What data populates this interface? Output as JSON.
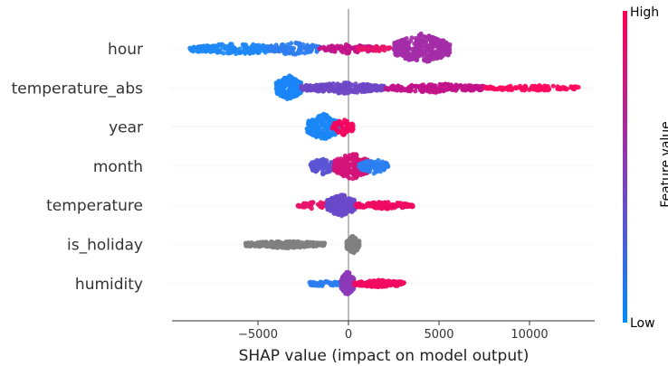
{
  "chart_data": {
    "type": "scatter",
    "subtype": "shap-beeswarm",
    "title": "",
    "xlabel": "SHAP value (impact on model output)",
    "ylabel": "",
    "xlim": [
      -9800,
      13800
    ],
    "xticks": [
      -5000,
      0,
      5000,
      10000
    ],
    "xtick_labels": [
      "−5000",
      "0",
      "5000",
      "10000"
    ],
    "grid": false,
    "colorbar": {
      "low_label": "Low",
      "high_label": "High",
      "title": "Feature value",
      "low_color": "#008bfb",
      "high_color": "#ff0052"
    },
    "features": [
      {
        "name": "hour",
        "clusters": [
          {
            "min": -8800,
            "max": -3500,
            "color": "#1e88f5",
            "spread": 6,
            "n": 180
          },
          {
            "min": -4500,
            "max": -1500,
            "color": "#2f7ef0",
            "spread": 7,
            "n": 90
          },
          {
            "min": -1600,
            "max": 1400,
            "color": "#c2138a",
            "spread": 5,
            "n": 90
          },
          {
            "min": 500,
            "max": 2500,
            "color": "#e8146a",
            "spread": 3,
            "n": 40
          },
          {
            "min": 2500,
            "max": 5600,
            "color": "#a42ca8",
            "spread": 17,
            "n": 320
          }
        ]
      },
      {
        "name": "temperature_abs",
        "clusters": [
          {
            "min": -4000,
            "max": -2600,
            "color": "#1a86f7",
            "spread": 14,
            "n": 200
          },
          {
            "min": -2600,
            "max": 2000,
            "color": "#6e46c6",
            "spread": 6,
            "n": 220
          },
          {
            "min": 2000,
            "max": 7500,
            "color": "#c2128a",
            "spread": 5,
            "n": 200
          },
          {
            "min": 7500,
            "max": 12700,
            "color": "#ff0a60",
            "spread": 3,
            "n": 120
          }
        ]
      },
      {
        "name": "year",
        "clusters": [
          {
            "min": -2300,
            "max": -500,
            "color": "#1b87f5",
            "spread": 15,
            "n": 180
          },
          {
            "min": -900,
            "max": 300,
            "color": "#f2065f",
            "spread": 9,
            "n": 60
          }
        ]
      },
      {
        "name": "month",
        "clusters": [
          {
            "min": -2100,
            "max": -800,
            "color": "#5a55d5",
            "spread": 9,
            "n": 80
          },
          {
            "min": -800,
            "max": 1200,
            "color": "#d3147a",
            "spread": 15,
            "n": 220
          },
          {
            "min": 600,
            "max": 2200,
            "color": "#2a7ff2",
            "spread": 8,
            "n": 80
          }
        ]
      },
      {
        "name": "temperature",
        "clusters": [
          {
            "min": -2800,
            "max": -900,
            "color": "#e8146a",
            "spread": 4,
            "n": 60
          },
          {
            "min": -1200,
            "max": 400,
            "color": "#6a4acb",
            "spread": 13,
            "n": 200
          },
          {
            "min": 400,
            "max": 3600,
            "color": "#f00a62",
            "spread": 4,
            "n": 120
          }
        ]
      },
      {
        "name": "is_holiday",
        "clusters": [
          {
            "min": -5700,
            "max": -1300,
            "color": "#808080",
            "spread": 4,
            "n": 260
          },
          {
            "min": -100,
            "max": 600,
            "color": "#808080",
            "spread": 10,
            "n": 120
          }
        ]
      },
      {
        "name": "humidity",
        "clusters": [
          {
            "min": -2300,
            "max": -400,
            "color": "#2d7df0",
            "spread": 3,
            "n": 60
          },
          {
            "min": -400,
            "max": 300,
            "color": "#8c3ab8",
            "spread": 14,
            "n": 140
          },
          {
            "min": 300,
            "max": 3100,
            "color": "#f20a62",
            "spread": 4,
            "n": 140
          }
        ]
      }
    ]
  }
}
